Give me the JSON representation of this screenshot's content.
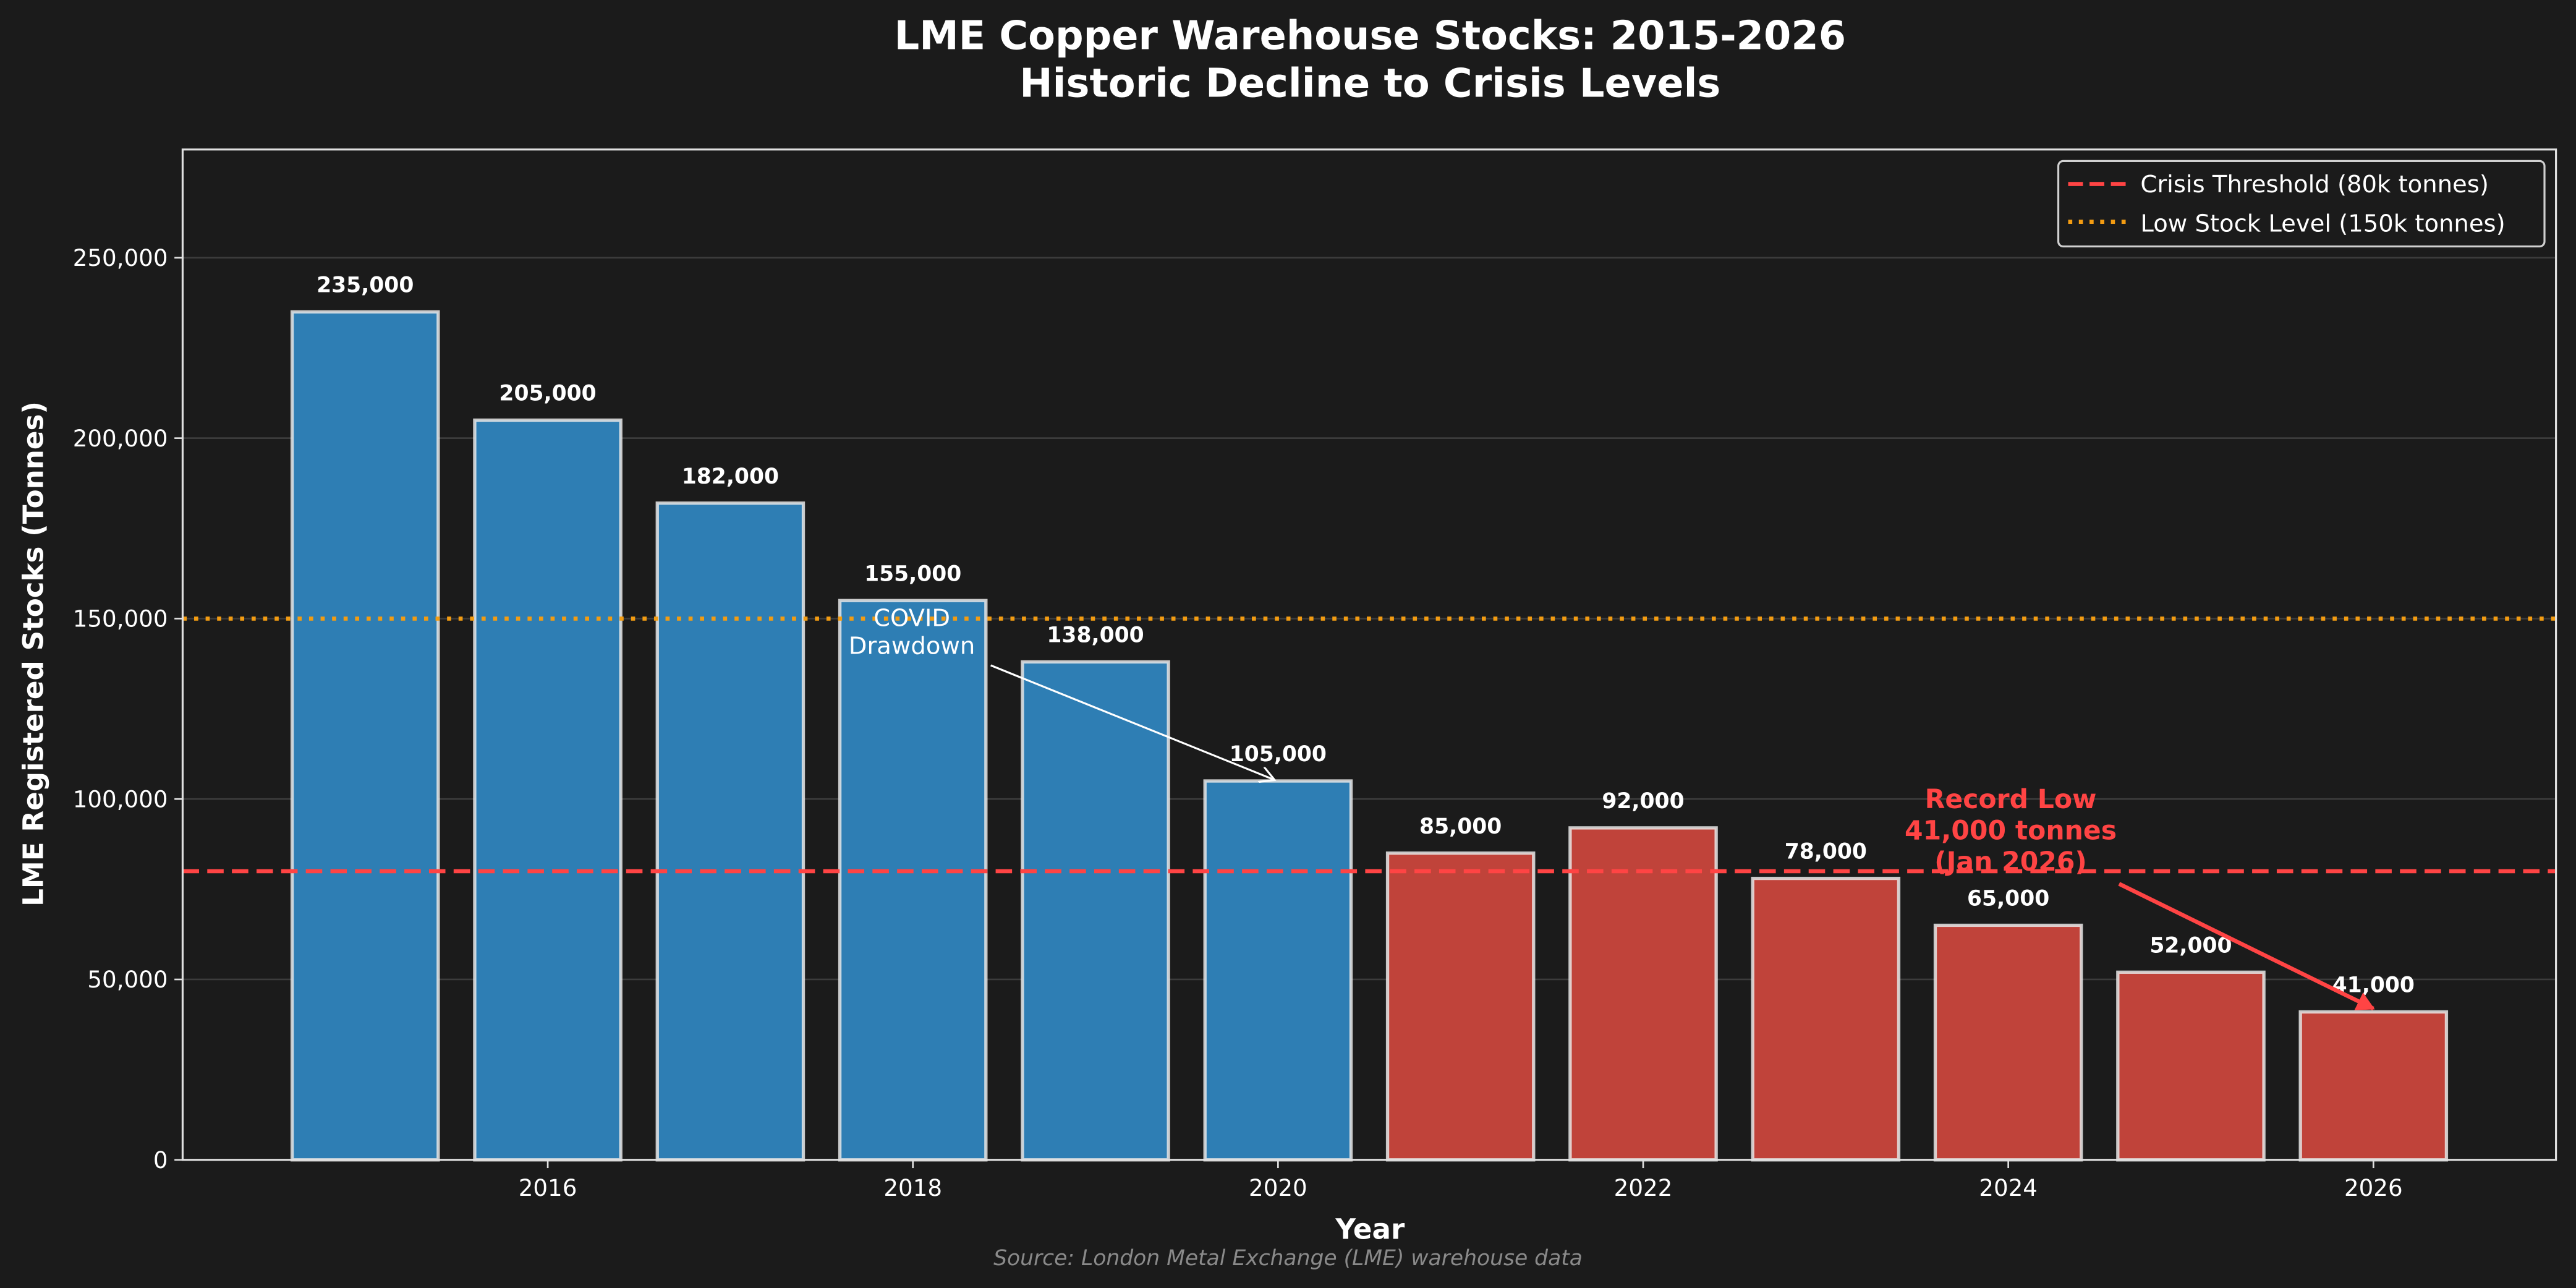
{
  "chart_data": {
    "type": "bar",
    "title": "LME Copper Warehouse Stocks: 2015-2026",
    "subtitle": "Historic Decline to Crisis Levels",
    "xlabel": "Year",
    "ylabel": "LME Registered Stocks (Tonnes)",
    "source": "Source: London Metal Exchange (LME) warehouse data",
    "x": [
      2015,
      2016,
      2017,
      2018,
      2019,
      2020,
      2021,
      2022,
      2023,
      2024,
      2025,
      2026
    ],
    "values": [
      235000,
      205000,
      182000,
      155000,
      138000,
      105000,
      85000,
      92000,
      78000,
      65000,
      52000,
      41000
    ],
    "data_labels": [
      "235,000",
      "205,000",
      "182,000",
      "155,000",
      "138,000",
      "105,000",
      "85,000",
      "92,000",
      "78,000",
      "65,000",
      "52,000",
      "41,000"
    ],
    "bar_colors": [
      "#2e7eb4",
      "#2e7eb4",
      "#2e7eb4",
      "#2e7eb4",
      "#2e7eb4",
      "#2e7eb4",
      "#c0433a",
      "#c0433a",
      "#c0433a",
      "#c0433a",
      "#c0433a",
      "#c0433a"
    ],
    "xlim": [
      2014,
      2027
    ],
    "ylim": [
      0,
      280000
    ],
    "xticks": [
      2016,
      2018,
      2020,
      2022,
      2024,
      2026
    ],
    "xtick_labels": [
      "2016",
      "2018",
      "2020",
      "2022",
      "2024",
      "2026"
    ],
    "yticks": [
      0,
      50000,
      100000,
      150000,
      200000,
      250000
    ],
    "ytick_labels": [
      "0",
      "50,000",
      "100,000",
      "150,000",
      "200,000",
      "250,000"
    ],
    "grid": "horizontal",
    "legend_position": "top-right",
    "reference_lines": [
      {
        "name": "Crisis Threshold (80k tonnes)",
        "y": 80000,
        "style": "dashed",
        "color": "#ff4444"
      },
      {
        "name": "Low Stock Level (150k tonnes)",
        "y": 150000,
        "style": "dotted",
        "color": "#f39c12"
      }
    ],
    "annotations": [
      {
        "lines": [
          "COVID",
          "Drawdown"
        ],
        "target": [
          2020,
          105000
        ],
        "color": "#ffffff"
      },
      {
        "lines": [
          "Record Low",
          "41,000 tonnes",
          "(Jan 2026)"
        ],
        "target": [
          2026,
          41000
        ],
        "color": "#ff4444"
      }
    ]
  }
}
